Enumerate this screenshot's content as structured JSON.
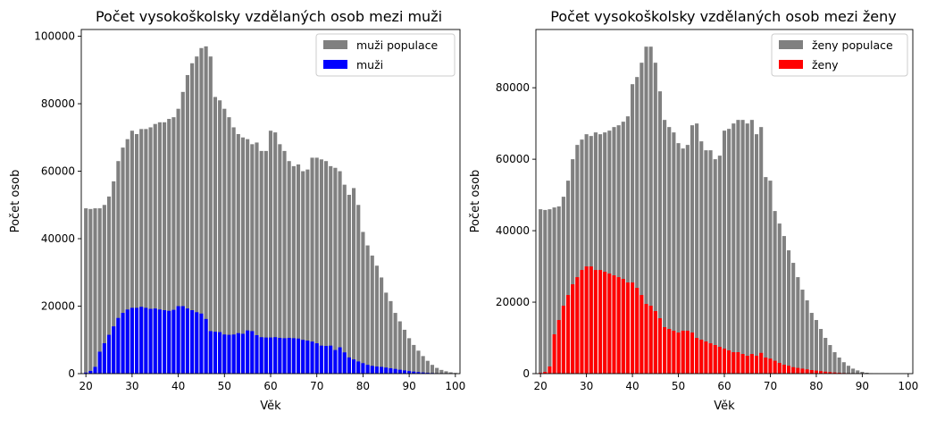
{
  "chart_data": [
    {
      "type": "bar",
      "title": "Počet vysokoškolsky vzdělaných osob mezi muži",
      "xlabel": "Věk",
      "ylabel": "Počet osob",
      "x_start": 20,
      "x_end": 100,
      "xlim": [
        19,
        101
      ],
      "ylim": [
        0,
        102000
      ],
      "xticks": [
        20,
        30,
        40,
        50,
        60,
        70,
        80,
        90,
        100
      ],
      "yticks": [
        0,
        20000,
        40000,
        60000,
        80000,
        100000
      ],
      "legend_position": "top-right",
      "series": [
        {
          "name": "muži populace",
          "color": "#808080",
          "values": [
            49000,
            48800,
            49000,
            49000,
            50000,
            52500,
            57000,
            63000,
            67000,
            69500,
            72000,
            71000,
            72500,
            72500,
            73000,
            74000,
            74500,
            74500,
            75500,
            76000,
            78500,
            83500,
            88500,
            92000,
            94000,
            96500,
            97000,
            94000,
            82000,
            81000,
            78500,
            76000,
            73000,
            71000,
            70000,
            69500,
            68000,
            68500,
            66000,
            66000,
            72000,
            71500,
            68000,
            66000,
            63000,
            61500,
            62000,
            60000,
            60500,
            64000,
            64000,
            63500,
            63000,
            61500,
            61000,
            60000,
            56000,
            53000,
            55000,
            50000,
            42000,
            38000,
            35000,
            32000,
            28500,
            24000,
            21500,
            18000,
            15500,
            13000,
            10500,
            8500,
            6800,
            5200,
            3800,
            2600,
            1700,
            1100,
            700,
            400,
            200
          ]
        },
        {
          "name": "muži",
          "color": "#0000ff",
          "values": [
            300,
            800,
            2000,
            6500,
            9000,
            11500,
            14000,
            16500,
            18000,
            19000,
            19500,
            19500,
            19800,
            19500,
            19200,
            19300,
            19000,
            18800,
            18600,
            18900,
            20000,
            20000,
            19300,
            18800,
            18200,
            17800,
            16200,
            12600,
            12400,
            12300,
            11600,
            11500,
            11600,
            12000,
            11800,
            12800,
            12600,
            11400,
            10800,
            10700,
            10700,
            10800,
            10600,
            10500,
            10600,
            10500,
            10400,
            10000,
            9800,
            9500,
            9000,
            8300,
            8200,
            8300,
            7000,
            7800,
            6300,
            4800,
            4200,
            3600,
            3100,
            2600,
            2300,
            2100,
            2000,
            1800,
            1600,
            1400,
            1150,
            950,
            750,
            600,
            450,
            340,
            250,
            170,
            110,
            70,
            40,
            20,
            10
          ]
        }
      ]
    },
    {
      "type": "bar",
      "title": "Počet vysokoškolsky vzdělaných osob mezi ženy",
      "xlabel": "Věk",
      "ylabel": "Počet osob",
      "x_start": 20,
      "x_end": 100,
      "xlim": [
        19,
        101
      ],
      "ylim": [
        0,
        96300
      ],
      "xticks": [
        20,
        30,
        40,
        50,
        60,
        70,
        80,
        90,
        100
      ],
      "yticks": [
        0,
        20000,
        40000,
        60000,
        80000
      ],
      "legend_position": "top-right",
      "series": [
        {
          "name": "ženy populace",
          "color": "#808080",
          "values": [
            46000,
            45800,
            46000,
            46500,
            46800,
            49500,
            54000,
            60000,
            64000,
            65500,
            67000,
            66500,
            67500,
            67000,
            67500,
            68000,
            69000,
            69500,
            70500,
            72000,
            81000,
            83000,
            87000,
            91500,
            91500,
            87000,
            79000,
            71000,
            69000,
            67500,
            64500,
            63000,
            64000,
            69500,
            70000,
            65000,
            62500,
            62500,
            60000,
            61000,
            68000,
            68500,
            70000,
            71000,
            71000,
            70000,
            71000,
            67000,
            69000,
            55000,
            54000,
            45500,
            42000,
            38500,
            34500,
            31000,
            27000,
            23500,
            20500,
            17000,
            15000,
            12500,
            10000,
            8000,
            6000,
            4500,
            3200,
            2200,
            1400,
            900,
            500,
            250,
            100,
            50,
            20,
            10,
            5,
            3,
            2,
            1,
            1
          ]
        },
        {
          "name": "ženy",
          "color": "#ff0000",
          "values": [
            200,
            500,
            2000,
            11000,
            15000,
            19000,
            22000,
            25000,
            27000,
            29000,
            30000,
            30000,
            29000,
            29000,
            28500,
            28000,
            27500,
            27000,
            26500,
            25500,
            25500,
            24000,
            22000,
            19500,
            19000,
            17500,
            15500,
            13000,
            12500,
            12000,
            11500,
            12000,
            12000,
            11500,
            10000,
            9500,
            9000,
            8500,
            8000,
            7500,
            7000,
            6500,
            6000,
            6000,
            5500,
            5000,
            5500,
            5000,
            5800,
            4500,
            4200,
            3600,
            3000,
            2500,
            2200,
            1800,
            1600,
            1400,
            1200,
            1000,
            850,
            700,
            550,
            420,
            320,
            230,
            160,
            110,
            70,
            40,
            20,
            10,
            5,
            3,
            2,
            1,
            1,
            1,
            1,
            1,
            1
          ]
        }
      ]
    }
  ]
}
